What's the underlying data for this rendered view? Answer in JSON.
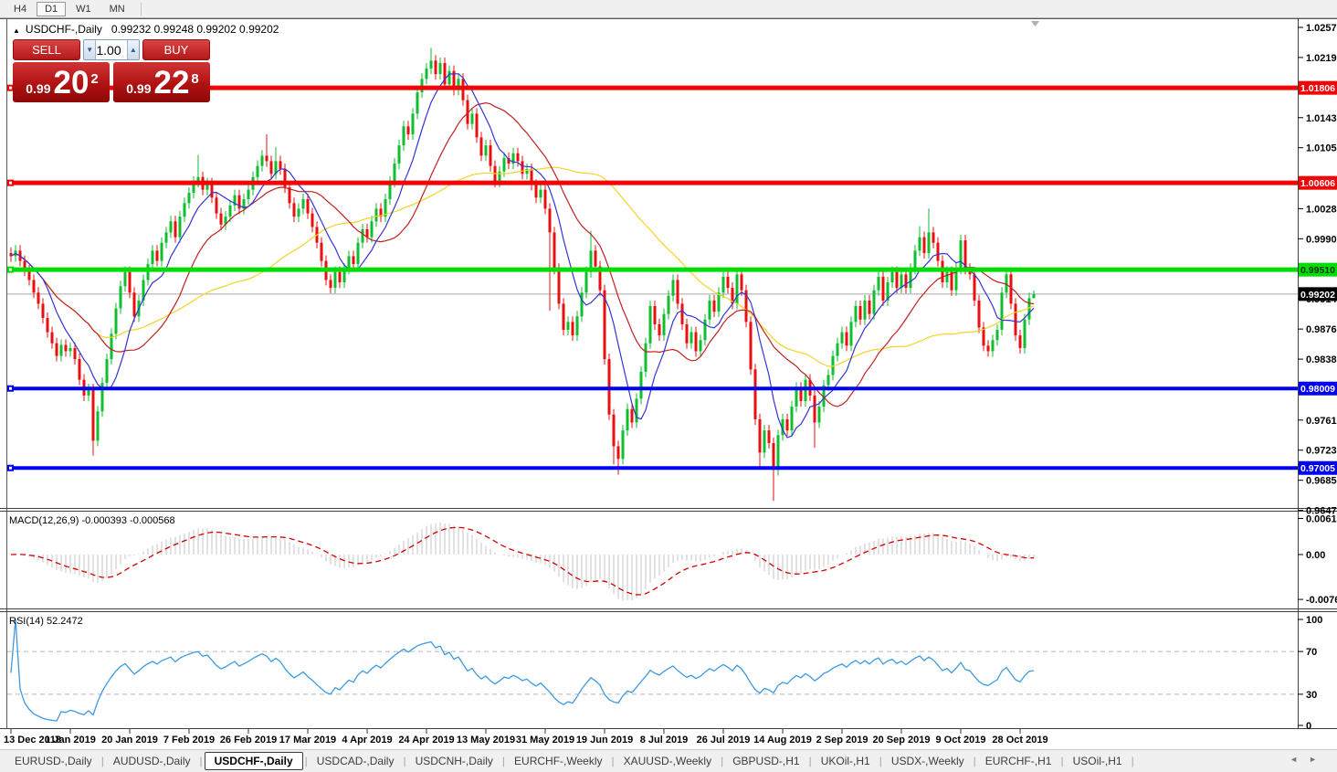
{
  "toolbar": {
    "timeframes": [
      {
        "label": "H4",
        "active": false
      },
      {
        "label": "D1",
        "active": true
      },
      {
        "label": "W1",
        "active": false
      },
      {
        "label": "MN",
        "active": false
      }
    ]
  },
  "icons": {
    "collapse_arrow": "▲",
    "shift_marker": "▼",
    "volume_down": "▼",
    "volume_up": "▲",
    "tab_scroll_left": "◄",
    "tab_scroll_right": "►"
  },
  "chart": {
    "symbol": "USDCHF-,Daily",
    "ohlc": "0.99232 0.99248 0.99202 0.99202"
  },
  "trade_panel": {
    "sell_label": "SELL",
    "buy_label": "BUY",
    "volume": "1.00",
    "sell_price": {
      "small": "0.99",
      "big": "20",
      "sup": "2"
    },
    "buy_price": {
      "small": "0.99",
      "big": "22",
      "sup": "8"
    }
  },
  "price_scale": {
    "ticks": [
      {
        "v": 1.0257,
        "label": "1.02570"
      },
      {
        "v": 1.0219,
        "label": "1.02190"
      },
      {
        "v": 1.0143,
        "label": "1.01430"
      },
      {
        "v": 1.0105,
        "label": "1.01050"
      },
      {
        "v": 1.0028,
        "label": "1.00280"
      },
      {
        "v": 0.999,
        "label": "0.99900"
      },
      {
        "v": 0.9914,
        "label": "0.99140"
      },
      {
        "v": 0.9876,
        "label": "0.98760"
      },
      {
        "v": 0.9838,
        "label": "0.98380"
      },
      {
        "v": 0.9761,
        "label": "0.97610"
      },
      {
        "v": 0.9723,
        "label": "0.97230"
      },
      {
        "v": 0.9685,
        "label": "0.96850"
      },
      {
        "v": 0.9647,
        "label": "0.96470"
      }
    ]
  },
  "macd_panel": {
    "label": "MACD(12,26,9)",
    "values": "-0.000393 -0.000568",
    "ticks": [
      {
        "v": 0.00613,
        "label": "0.00613"
      },
      {
        "v": 0,
        "label": "0.00"
      },
      {
        "v": -0.00761,
        "label": "-0.00761"
      }
    ]
  },
  "rsi_panel": {
    "label": "RSI(14)",
    "value": "52.2472",
    "ticks": [
      {
        "v": 100,
        "label": "100"
      },
      {
        "v": 70,
        "label": "70"
      },
      {
        "v": 30,
        "label": "30"
      },
      {
        "v": 0,
        "label": "0"
      }
    ],
    "levels": [
      70,
      30
    ]
  },
  "tabs": {
    "items": [
      {
        "label": "EURUSD-,Daily",
        "active": false
      },
      {
        "label": "AUDUSD-,Daily",
        "active": false
      },
      {
        "label": "USDCHF-,Daily",
        "active": true
      },
      {
        "label": "USDCAD-,Daily",
        "active": false
      },
      {
        "label": "USDCNH-,Daily",
        "active": false
      },
      {
        "label": "EURCHF-,Weekly",
        "active": false
      },
      {
        "label": "XAUUSD-,Weekly",
        "active": false
      },
      {
        "label": "GBPUSD-,H1",
        "active": false
      },
      {
        "label": "UKOil-,H1",
        "active": false
      },
      {
        "label": "USDX-,Weekly",
        "active": false
      },
      {
        "label": "EURCHF-,H1",
        "active": false
      },
      {
        "label": "USOil-,H1",
        "active": false
      }
    ]
  },
  "chart_data": {
    "type": "candlestick",
    "symbol": "USDCHF",
    "timeframe": "Daily",
    "title": "USDCHF-,Daily",
    "last_ohlc": {
      "open": 0.99232,
      "high": 0.99248,
      "low": 0.99202,
      "close": 0.99202
    },
    "price_axis": {
      "min": 0.965,
      "max": 1.02685
    },
    "colors": {
      "bull": "#0fbf2f",
      "bear": "#ea0f0f",
      "ma_fast": "#3434d4",
      "ma_mid": "#c02020",
      "ma_slow": "#f5d327",
      "hline_red": "#f00505",
      "hline_green": "#00dd00",
      "hline_blue": "#0000f0",
      "current_line": "#a8a8a8",
      "macd_hist": "#c4c4c4",
      "macd_signal": "#d40000",
      "rsi_line": "#3d9ae0",
      "level_dash": "#b8b8b8"
    },
    "closes": [
      0.9968,
      0.9975,
      0.9962,
      0.995,
      0.9938,
      0.9922,
      0.9908,
      0.989,
      0.9872,
      0.9858,
      0.9842,
      0.9856,
      0.9848,
      0.9852,
      0.9838,
      0.9812,
      0.9792,
      0.98,
      0.9735,
      0.9772,
      0.9808,
      0.9838,
      0.987,
      0.9902,
      0.993,
      0.9948,
      0.9922,
      0.9892,
      0.9912,
      0.9938,
      0.9958,
      0.9975,
      0.9962,
      0.9985,
      0.9998,
      1.0012,
      0.9992,
      1.0018,
      1.0035,
      1.0048,
      1.0062,
      1.0068,
      1.0052,
      1.006,
      1.0042,
      1.0022,
      1.0008,
      1.0018,
      1.0032,
      1.0045,
      1.0028,
      1.004,
      1.0052,
      1.0068,
      1.0082,
      1.0095,
      1.0088,
      1.0072,
      1.0088,
      1.0078,
      1.0055,
      1.0035,
      1.0018,
      1.0028,
      1.004,
      1.0022,
      1.0005,
      0.9985,
      0.9962,
      0.9938,
      0.9928,
      0.9948,
      0.9935,
      0.9952,
      0.9968,
      0.9958,
      0.9985,
      1.0002,
      0.9992,
      1.0012,
      1.0028,
      1.0018,
      1.004,
      1.0062,
      1.0085,
      1.0108,
      1.0132,
      1.0122,
      1.0148,
      1.0175,
      1.0192,
      1.0205,
      1.0215,
      1.0198,
      1.0212,
      1.0185,
      1.0202,
      1.0178,
      1.0192,
      1.0165,
      1.0135,
      1.0148,
      1.0118,
      1.0095,
      1.0108,
      1.0082,
      1.0062,
      1.0075,
      1.0092,
      1.0085,
      1.0098,
      1.0088,
      1.0072,
      1.0078,
      1.0058,
      1.0042,
      1.0052,
      1.0028,
      0.9998,
      0.9952,
      0.9908,
      0.9875,
      0.9885,
      0.9868,
      0.9892,
      0.9922,
      0.9948,
      0.9975,
      0.9955,
      0.9925,
      0.9838,
      0.9768,
      0.9728,
      0.9712,
      0.9748,
      0.9775,
      0.9758,
      0.9788,
      0.9822,
      0.9858,
      0.9905,
      0.9882,
      0.9868,
      0.9895,
      0.9918,
      0.9938,
      0.9908,
      0.9882,
      0.9858,
      0.9872,
      0.9848,
      0.9862,
      0.9888,
      0.9912,
      0.9898,
      0.9922,
      0.9942,
      0.9928,
      0.9908,
      0.9945,
      0.9925,
      0.9885,
      0.9825,
      0.9762,
      0.972,
      0.9748,
      0.9732,
      0.9698,
      0.9742,
      0.9762,
      0.9748,
      0.9778,
      0.9802,
      0.9785,
      0.9812,
      0.9792,
      0.9758,
      0.9778,
      0.9805,
      0.9818,
      0.9842,
      0.9858,
      0.9872,
      0.9855,
      0.9885,
      0.9905,
      0.9888,
      0.9912,
      0.9895,
      0.9925,
      0.9942,
      0.9912,
      0.9935,
      0.9948,
      0.9928,
      0.9945,
      0.9928,
      0.9952,
      0.9975,
      0.9992,
      0.9972,
      0.9998,
      0.9985,
      0.9962,
      0.9935,
      0.9948,
      0.9925,
      0.9952,
      0.9988,
      0.9952,
      0.9945,
      0.9912,
      0.9878,
      0.9855,
      0.9848,
      0.9862,
      0.9875,
      0.9922,
      0.9945,
      0.9908,
      0.9868,
      0.9852,
      0.9888,
      0.9915,
      0.99202
    ],
    "spikes": [
      {
        "i": 18,
        "low": 0.9716
      },
      {
        "i": 41,
        "high": 1.0096
      },
      {
        "i": 56,
        "high": 1.0122
      },
      {
        "i": 58,
        "high": 1.0106
      },
      {
        "i": 92,
        "high": 1.0231
      },
      {
        "i": 118,
        "low": 0.9899
      },
      {
        "i": 127,
        "high": 1.0
      },
      {
        "i": 132,
        "low": 0.9705
      },
      {
        "i": 133,
        "low": 0.9692
      },
      {
        "i": 164,
        "low": 0.9699
      },
      {
        "i": 167,
        "low": 0.9659
      },
      {
        "i": 176,
        "low": 0.9726
      },
      {
        "i": 199,
        "high": 1.0006
      },
      {
        "i": 201,
        "high": 1.0028
      },
      {
        "i": 224,
        "high": 0.99248,
        "low": 0.99202
      }
    ],
    "moving_averages": [
      {
        "period": 8,
        "color": "#3434d4"
      },
      {
        "period": 20,
        "color": "#c02020"
      },
      {
        "period": 50,
        "color": "#f5d327"
      }
    ],
    "hlines": [
      {
        "value": 1.01806,
        "label": "1.01806",
        "color": "#f00505",
        "thickness": 5,
        "text_color": "#ffffff"
      },
      {
        "value": 1.00606,
        "label": "1.00606",
        "color": "#f00505",
        "thickness": 5,
        "text_color": "#ffffff"
      },
      {
        "value": 0.9951,
        "label": "0.99510",
        "color": "#00dd00",
        "thickness": 5,
        "text_color": "#043304"
      },
      {
        "value": 0.98009,
        "label": "0.98009",
        "color": "#0000f0",
        "thickness": 4,
        "text_color": "#ffffff"
      },
      {
        "value": 0.97005,
        "label": "0.97005",
        "color": "#0000f0",
        "thickness": 4,
        "text_color": "#ffffff"
      }
    ],
    "current_price": {
      "value": 0.99202,
      "label": "0.99202"
    },
    "macd": {
      "fast": 12,
      "slow": 26,
      "signal": 9,
      "current_main": -0.000393,
      "current_signal": -0.000568
    },
    "rsi": {
      "period": 14,
      "current": 52.2472,
      "levels": [
        70,
        30
      ]
    },
    "date_labels": [
      {
        "i": 0,
        "label": "13 Dec 2018"
      },
      {
        "i": 13,
        "label": "1 Jan 2019"
      },
      {
        "i": 26,
        "label": "20 Jan 2019"
      },
      {
        "i": 39,
        "label": "7 Feb 2019"
      },
      {
        "i": 52,
        "label": "26 Feb 2019"
      },
      {
        "i": 65,
        "label": "17 Mar 2019"
      },
      {
        "i": 78,
        "label": "4 Apr 2019"
      },
      {
        "i": 91,
        "label": "24 Apr 2019"
      },
      {
        "i": 104,
        "label": "13 May 2019"
      },
      {
        "i": 117,
        "label": "31 May 2019"
      },
      {
        "i": 130,
        "label": "19 Jun 2019"
      },
      {
        "i": 143,
        "label": "8 Jul 2019"
      },
      {
        "i": 156,
        "label": "26 Jul 2019"
      },
      {
        "i": 169,
        "label": "14 Aug 2019"
      },
      {
        "i": 182,
        "label": "2 Sep 2019"
      },
      {
        "i": 195,
        "label": "20 Sep 2019"
      },
      {
        "i": 208,
        "label": "9 Oct 2019"
      },
      {
        "i": 221,
        "label": "28 Oct 2019"
      }
    ]
  }
}
